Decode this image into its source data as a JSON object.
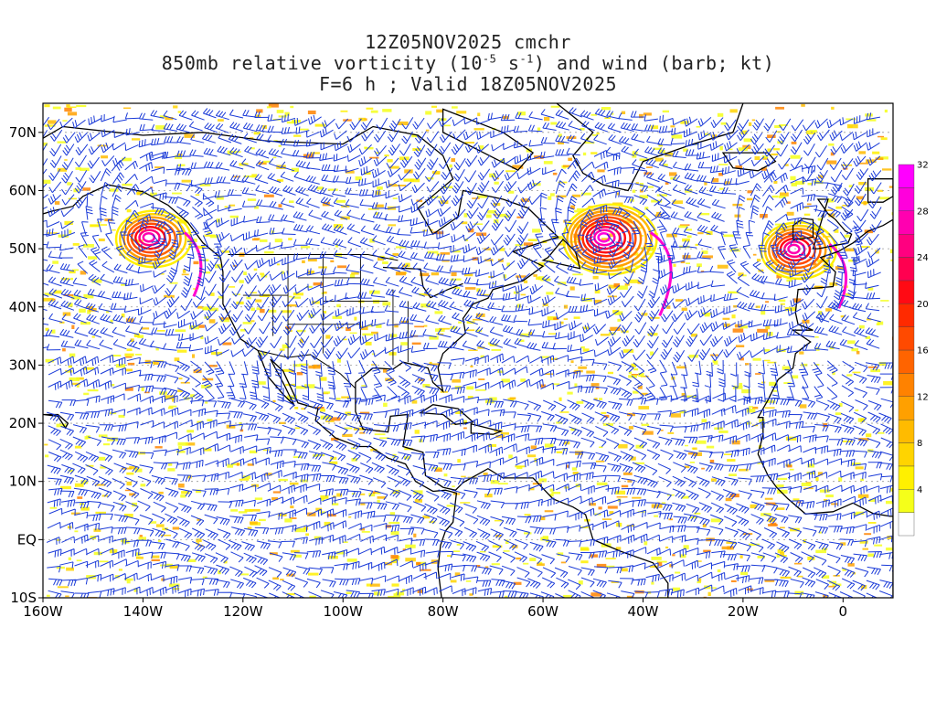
{
  "title": {
    "line1": "12Z05NOV2025 cmchr",
    "line2_pre": "850mb relative vorticity (10",
    "line2_exp1": "-5",
    "line2_mid": " s",
    "line2_exp2": "-1",
    "line2_post": ") and wind (barb; kt)",
    "line3": "F=6 h ; Valid 18Z05NOV2025"
  },
  "map": {
    "lon_range": [
      -160,
      10
    ],
    "lat_range": [
      -10,
      75
    ],
    "lon_ticks": [
      {
        "value": -160,
        "label": "160W"
      },
      {
        "value": -140,
        "label": "140W"
      },
      {
        "value": -120,
        "label": "120W"
      },
      {
        "value": -100,
        "label": "100W"
      },
      {
        "value": -80,
        "label": "80W"
      },
      {
        "value": -60,
        "label": "60W"
      },
      {
        "value": -40,
        "label": "40W"
      },
      {
        "value": -20,
        "label": "20W"
      },
      {
        "value": 0,
        "label": "0"
      }
    ],
    "lat_ticks": [
      {
        "value": -10,
        "label": "10S"
      },
      {
        "value": 0,
        "label": "EQ"
      },
      {
        "value": 10,
        "label": "10N"
      },
      {
        "value": 20,
        "label": "20N"
      },
      {
        "value": 30,
        "label": "30N"
      },
      {
        "value": 40,
        "label": "40N"
      },
      {
        "value": 50,
        "label": "50N"
      },
      {
        "value": 60,
        "label": "60N"
      },
      {
        "value": 70,
        "label": "70N"
      }
    ],
    "cyclones": [
      {
        "lon": -139,
        "lat": 52,
        "strength": 1.0
      },
      {
        "lon": -48,
        "lat": 52,
        "strength": 1.3
      },
      {
        "lon": -10,
        "lat": 50,
        "strength": 1.0
      }
    ],
    "colors": {
      "barb": "#1a3ad8",
      "coast": "#000000",
      "grid": "#999999"
    }
  },
  "colorbar": {
    "ticks": [
      "4",
      "8",
      "12",
      "16",
      "20",
      "24",
      "28",
      "32"
    ],
    "colors": [
      "#ffffff",
      "#f5ff1a",
      "#fff000",
      "#ffd400",
      "#ffbb00",
      "#ffa000",
      "#ff8200",
      "#ff6400",
      "#ff4a00",
      "#ff2a00",
      "#ff0a14",
      "#ff0050",
      "#ff0080",
      "#ff00b0",
      "#ff00dc",
      "#ff00ff"
    ]
  }
}
